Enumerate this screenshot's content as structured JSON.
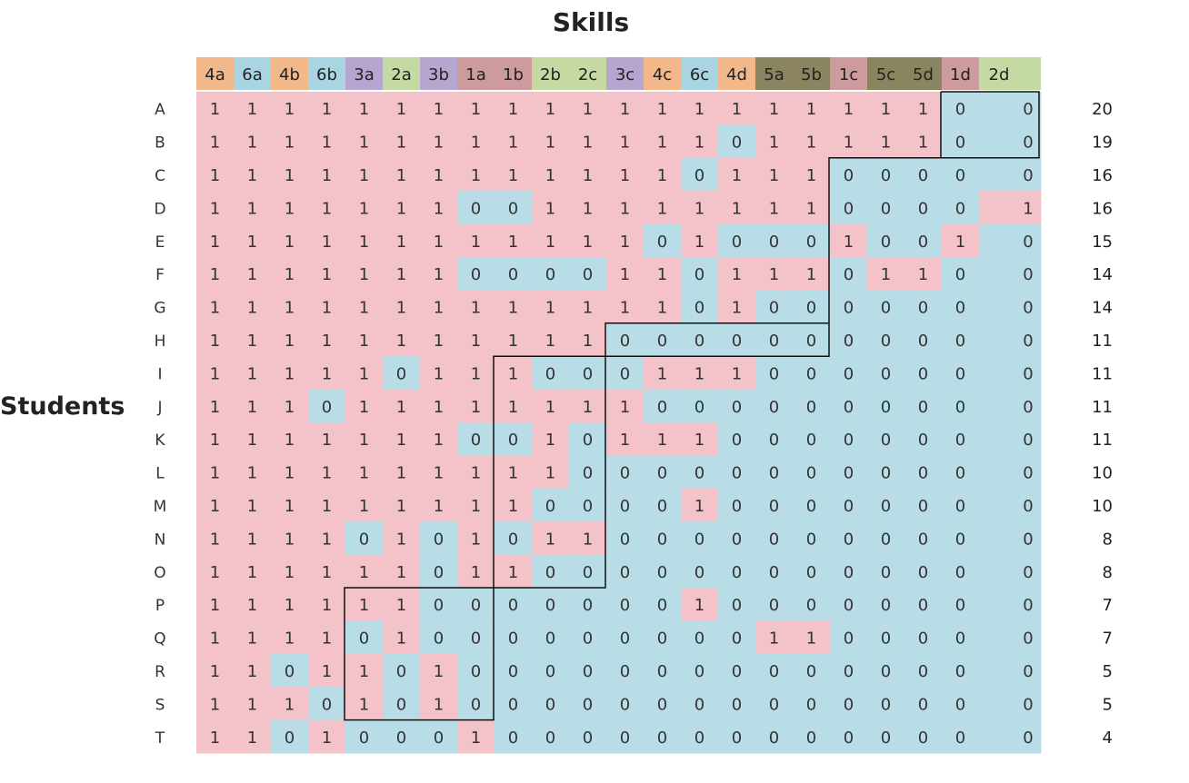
{
  "chart_data": {
    "type": "table",
    "title": "Skills",
    "ylabel": "Students",
    "columns": [
      "4a",
      "6a",
      "4b",
      "6b",
      "3a",
      "2a",
      "3b",
      "1a",
      "1b",
      "2b",
      "2c",
      "3c",
      "4c",
      "6c",
      "4d",
      "5a",
      "5b",
      "1c",
      "5c",
      "5d",
      "1d",
      "2d"
    ],
    "header_colors": {
      "1": "#cd9a9e",
      "2": "#c5d9a2",
      "3": "#b6a6cf",
      "4": "#f2b88a",
      "5": "#8b8460",
      "6": "#a9d4e2"
    },
    "cell_colors": {
      "one": "#f4c2c9",
      "zero": "#b8dde6"
    },
    "rows": [
      {
        "label": "A",
        "values": [
          1,
          1,
          1,
          1,
          1,
          1,
          1,
          1,
          1,
          1,
          1,
          1,
          1,
          1,
          1,
          1,
          1,
          1,
          1,
          1,
          0,
          0
        ],
        "total": "20"
      },
      {
        "label": "B",
        "values": [
          1,
          1,
          1,
          1,
          1,
          1,
          1,
          1,
          1,
          1,
          1,
          1,
          1,
          1,
          0,
          1,
          1,
          1,
          1,
          1,
          0,
          0
        ],
        "total": "19"
      },
      {
        "label": "C",
        "values": [
          1,
          1,
          1,
          1,
          1,
          1,
          1,
          1,
          1,
          1,
          1,
          1,
          1,
          0,
          1,
          1,
          1,
          0,
          0,
          0,
          0,
          0
        ],
        "total": "16"
      },
      {
        "label": "D",
        "values": [
          1,
          1,
          1,
          1,
          1,
          1,
          1,
          0,
          0,
          1,
          1,
          1,
          1,
          1,
          1,
          1,
          1,
          0,
          0,
          0,
          0,
          1
        ],
        "total": "16"
      },
      {
        "label": "E",
        "values": [
          1,
          1,
          1,
          1,
          1,
          1,
          1,
          1,
          1,
          1,
          1,
          1,
          0,
          1,
          0,
          0,
          0,
          1,
          0,
          0,
          1,
          0
        ],
        "total": "15"
      },
      {
        "label": "F",
        "values": [
          1,
          1,
          1,
          1,
          1,
          1,
          1,
          0,
          0,
          0,
          0,
          1,
          1,
          0,
          1,
          1,
          1,
          0,
          1,
          1,
          0,
          0
        ],
        "total": "14"
      },
      {
        "label": "G",
        "values": [
          1,
          1,
          1,
          1,
          1,
          1,
          1,
          1,
          1,
          1,
          1,
          1,
          1,
          0,
          1,
          0,
          0,
          0,
          0,
          0,
          0,
          0
        ],
        "total": "14"
      },
      {
        "label": "H",
        "values": [
          1,
          1,
          1,
          1,
          1,
          1,
          1,
          1,
          1,
          1,
          1,
          0,
          0,
          0,
          0,
          0,
          0,
          0,
          0,
          0,
          0,
          0
        ],
        "total": "11"
      },
      {
        "label": "I",
        "values": [
          1,
          1,
          1,
          1,
          1,
          0,
          1,
          1,
          1,
          0,
          0,
          0,
          1,
          1,
          1,
          0,
          0,
          0,
          0,
          0,
          0,
          0
        ],
        "total": "11"
      },
      {
        "label": "J",
        "values": [
          1,
          1,
          1,
          0,
          1,
          1,
          1,
          1,
          1,
          1,
          1,
          1,
          0,
          0,
          0,
          0,
          0,
          0,
          0,
          0,
          0,
          0
        ],
        "total": "11"
      },
      {
        "label": "K",
        "values": [
          1,
          1,
          1,
          1,
          1,
          1,
          1,
          0,
          0,
          1,
          0,
          1,
          1,
          1,
          0,
          0,
          0,
          0,
          0,
          0,
          0,
          0
        ],
        "total": "11"
      },
      {
        "label": "L",
        "values": [
          1,
          1,
          1,
          1,
          1,
          1,
          1,
          1,
          1,
          1,
          0,
          0,
          0,
          0,
          0,
          0,
          0,
          0,
          0,
          0,
          0,
          0
        ],
        "total": "10"
      },
      {
        "label": "M",
        "values": [
          1,
          1,
          1,
          1,
          1,
          1,
          1,
          1,
          1,
          0,
          0,
          0,
          0,
          1,
          0,
          0,
          0,
          0,
          0,
          0,
          0,
          0
        ],
        "total": "10"
      },
      {
        "label": "N",
        "values": [
          1,
          1,
          1,
          1,
          0,
          1,
          0,
          1,
          0,
          1,
          1,
          0,
          0,
          0,
          0,
          0,
          0,
          0,
          0,
          0,
          0,
          0
        ],
        "total": "8"
      },
      {
        "label": "O",
        "values": [
          1,
          1,
          1,
          1,
          1,
          1,
          0,
          1,
          1,
          0,
          0,
          0,
          0,
          0,
          0,
          0,
          0,
          0,
          0,
          0,
          0,
          0
        ],
        "total": "8"
      },
      {
        "label": "P",
        "values": [
          1,
          1,
          1,
          1,
          1,
          1,
          0,
          0,
          0,
          0,
          0,
          0,
          0,
          1,
          0,
          0,
          0,
          0,
          0,
          0,
          0,
          0
        ],
        "total": "7"
      },
      {
        "label": "Q",
        "values": [
          1,
          1,
          1,
          1,
          0,
          1,
          0,
          0,
          0,
          0,
          0,
          0,
          0,
          0,
          0,
          1,
          1,
          0,
          0,
          0,
          0,
          0
        ],
        "total": "7"
      },
      {
        "label": "R",
        "values": [
          1,
          1,
          0,
          1,
          1,
          0,
          1,
          0,
          0,
          0,
          0,
          0,
          0,
          0,
          0,
          0,
          0,
          0,
          0,
          0,
          0,
          0
        ],
        "total": "5"
      },
      {
        "label": "S",
        "values": [
          1,
          1,
          1,
          0,
          1,
          0,
          1,
          0,
          0,
          0,
          0,
          0,
          0,
          0,
          0,
          0,
          0,
          0,
          0,
          0,
          0,
          0
        ],
        "total": "5"
      },
      {
        "label": "T",
        "values": [
          1,
          1,
          0,
          1,
          0,
          0,
          0,
          1,
          0,
          0,
          0,
          0,
          0,
          0,
          0,
          0,
          0,
          0,
          0,
          0,
          0,
          0
        ],
        "total": "4"
      }
    ],
    "boundary": {
      "note_units": "column index (0-22) / row index (0-20)",
      "points": [
        [
          20,
          0
        ],
        [
          23,
          0
        ],
        [
          23,
          2
        ],
        [
          17,
          2
        ],
        [
          17,
          7
        ],
        [
          11,
          7
        ],
        [
          11,
          8
        ],
        [
          8,
          8
        ],
        [
          8,
          15
        ],
        [
          4,
          15
        ],
        [
          4,
          19
        ],
        [
          8,
          19
        ],
        [
          8,
          15
        ],
        [
          11,
          15
        ],
        [
          11,
          8
        ],
        [
          17,
          8
        ],
        [
          17,
          2
        ],
        [
          20,
          2
        ],
        [
          20,
          0
        ]
      ]
    }
  }
}
